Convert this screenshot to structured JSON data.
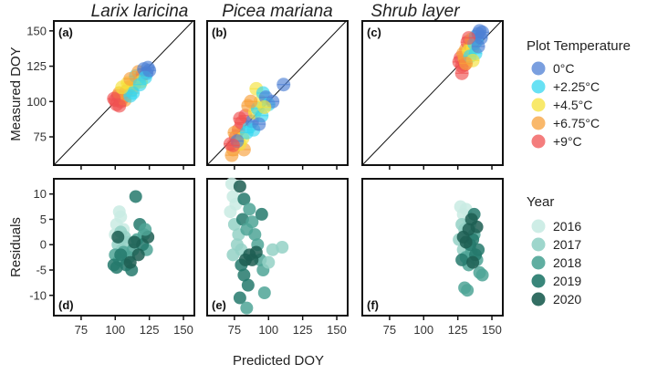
{
  "chart_data": {
    "type": "scatter",
    "x_label": "Predicted DOY",
    "y_label_top": "Measured DOY",
    "y_label_bottom": "Residuals",
    "x_ticks": [
      "75",
      "100",
      "125",
      "150"
    ],
    "x_tick_values": [
      75,
      100,
      125,
      150
    ],
    "top_y_ticks": [
      "75",
      "100",
      "125",
      "150"
    ],
    "top_y_tick_values": [
      75,
      100,
      125,
      150
    ],
    "bottom_y_ticks": [
      "10",
      "5",
      "0",
      "-5",
      "-10"
    ],
    "bottom_y_tick_values": [
      10,
      5,
      0,
      -5,
      -10
    ],
    "xlim": [
      55,
      158
    ],
    "top_ylim": [
      55,
      157
    ],
    "bottom_ylim": [
      -14,
      13
    ],
    "columns": [
      "Larix laricina",
      "Picea mariana",
      "Shrub layer"
    ],
    "panel_labels": [
      "(a)",
      "(b)",
      "(c)",
      "(d)",
      "(e)",
      "(f)"
    ],
    "temperature_legend": {
      "title": "Plot Temperature",
      "items": [
        {
          "label": "0°C",
          "color": "#4d7fd4"
        },
        {
          "label": "+2.25°C",
          "color": "#35d7f0"
        },
        {
          "label": "+4.5°C",
          "color": "#f5e23a"
        },
        {
          "label": "+6.75°C",
          "color": "#f7a03a"
        },
        {
          "label": "+9°C",
          "color": "#f05252"
        }
      ]
    },
    "year_legend": {
      "title": "Year",
      "items": [
        {
          "label": "2016",
          "color": "#c9ebe3"
        },
        {
          "label": "2017",
          "color": "#94d1c6"
        },
        {
          "label": "2018",
          "color": "#4fa597"
        },
        {
          "label": "2019",
          "color": "#24796c"
        },
        {
          "label": "2020",
          "color": "#1d5e52"
        }
      ]
    },
    "measured_vs_predicted": [
      {
        "panel": "(a)",
        "points": [
          {
            "x": 100,
            "y": 101,
            "t": 4
          },
          {
            "x": 102,
            "y": 104,
            "t": 4
          },
          {
            "x": 104,
            "y": 100,
            "t": 4
          },
          {
            "x": 101,
            "y": 98,
            "t": 4
          },
          {
            "x": 106,
            "y": 103,
            "t": 4
          },
          {
            "x": 108,
            "y": 107,
            "t": 4
          },
          {
            "x": 103,
            "y": 106,
            "t": 3
          },
          {
            "x": 107,
            "y": 101,
            "t": 3
          },
          {
            "x": 110,
            "y": 110,
            "t": 3
          },
          {
            "x": 112,
            "y": 108,
            "t": 3
          },
          {
            "x": 109,
            "y": 113,
            "t": 2
          },
          {
            "x": 114,
            "y": 112,
            "t": 2
          },
          {
            "x": 116,
            "y": 115,
            "t": 2
          },
          {
            "x": 111,
            "y": 104,
            "t": 1
          },
          {
            "x": 115,
            "y": 118,
            "t": 1
          },
          {
            "x": 118,
            "y": 117,
            "t": 1
          },
          {
            "x": 113,
            "y": 106,
            "t": 1
          },
          {
            "x": 120,
            "y": 119,
            "t": 4
          },
          {
            "x": 117,
            "y": 121,
            "t": 3
          },
          {
            "x": 119,
            "y": 114,
            "t": 2
          },
          {
            "x": 121,
            "y": 123,
            "t": 0
          },
          {
            "x": 123,
            "y": 120,
            "t": 0
          },
          {
            "x": 124,
            "y": 124,
            "t": 0
          },
          {
            "x": 122,
            "y": 117,
            "t": 1
          },
          {
            "x": 105,
            "y": 110,
            "t": 2
          },
          {
            "x": 99,
            "y": 102,
            "t": 4
          },
          {
            "x": 111,
            "y": 116,
            "t": 3
          },
          {
            "x": 118,
            "y": 112,
            "t": 1
          },
          {
            "x": 125,
            "y": 122,
            "t": 0
          },
          {
            "x": 103,
            "y": 97,
            "t": 4
          }
        ]
      },
      {
        "panel": "(b)",
        "points": [
          {
            "x": 73,
            "y": 62,
            "t": 3
          },
          {
            "x": 74,
            "y": 66,
            "t": 3
          },
          {
            "x": 72,
            "y": 70,
            "t": 4
          },
          {
            "x": 76,
            "y": 75,
            "t": 4
          },
          {
            "x": 78,
            "y": 80,
            "t": 4
          },
          {
            "x": 75,
            "y": 78,
            "t": 3
          },
          {
            "x": 80,
            "y": 85,
            "t": 4
          },
          {
            "x": 82,
            "y": 66,
            "t": 3
          },
          {
            "x": 79,
            "y": 70,
            "t": 2
          },
          {
            "x": 81,
            "y": 74,
            "t": 2
          },
          {
            "x": 84,
            "y": 78,
            "t": 1
          },
          {
            "x": 86,
            "y": 82,
            "t": 1
          },
          {
            "x": 83,
            "y": 90,
            "t": 4
          },
          {
            "x": 85,
            "y": 97,
            "t": 3
          },
          {
            "x": 88,
            "y": 86,
            "t": 0
          },
          {
            "x": 90,
            "y": 92,
            "t": 2
          },
          {
            "x": 92,
            "y": 95,
            "t": 1
          },
          {
            "x": 94,
            "y": 100,
            "t": 2
          },
          {
            "x": 91,
            "y": 109,
            "t": 2
          },
          {
            "x": 96,
            "y": 106,
            "t": 1
          },
          {
            "x": 98,
            "y": 103,
            "t": 0
          },
          {
            "x": 100,
            "y": 98,
            "t": 1
          },
          {
            "x": 103,
            "y": 100,
            "t": 0
          },
          {
            "x": 111,
            "y": 112,
            "t": 0
          },
          {
            "x": 77,
            "y": 72,
            "t": 0
          },
          {
            "x": 89,
            "y": 80,
            "t": 1
          },
          {
            "x": 95,
            "y": 90,
            "t": 1
          },
          {
            "x": 87,
            "y": 100,
            "t": 3
          },
          {
            "x": 79,
            "y": 88,
            "t": 4
          },
          {
            "x": 93,
            "y": 84,
            "t": 0
          },
          {
            "x": 97,
            "y": 96,
            "t": 2
          },
          {
            "x": 74,
            "y": 69,
            "t": 4
          }
        ]
      },
      {
        "panel": "(c)",
        "points": [
          {
            "x": 126,
            "y": 128,
            "t": 4
          },
          {
            "x": 128,
            "y": 125,
            "t": 4
          },
          {
            "x": 127,
            "y": 131,
            "t": 4
          },
          {
            "x": 129,
            "y": 134,
            "t": 3
          },
          {
            "x": 130,
            "y": 130,
            "t": 3
          },
          {
            "x": 131,
            "y": 137,
            "t": 3
          },
          {
            "x": 132,
            "y": 142,
            "t": 4
          },
          {
            "x": 134,
            "y": 140,
            "t": 3
          },
          {
            "x": 133,
            "y": 136,
            "t": 2
          },
          {
            "x": 135,
            "y": 144,
            "t": 2
          },
          {
            "x": 136,
            "y": 138,
            "t": 2
          },
          {
            "x": 137,
            "y": 141,
            "t": 1
          },
          {
            "x": 138,
            "y": 146,
            "t": 1
          },
          {
            "x": 139,
            "y": 143,
            "t": 1
          },
          {
            "x": 140,
            "y": 148,
            "t": 0
          },
          {
            "x": 141,
            "y": 150,
            "t": 0
          },
          {
            "x": 142,
            "y": 145,
            "t": 0
          },
          {
            "x": 143,
            "y": 149,
            "t": 0
          },
          {
            "x": 130,
            "y": 126,
            "t": 4
          },
          {
            "x": 134,
            "y": 132,
            "t": 1
          },
          {
            "x": 138,
            "y": 134,
            "t": 1
          },
          {
            "x": 136,
            "y": 129,
            "t": 2
          },
          {
            "x": 128,
            "y": 120,
            "t": 4
          },
          {
            "x": 133,
            "y": 145,
            "t": 4
          },
          {
            "x": 140,
            "y": 139,
            "t": 0
          },
          {
            "x": 131,
            "y": 127,
            "t": 3
          }
        ]
      }
    ],
    "residuals": [
      {
        "panel": "(d)",
        "points": [
          {
            "x": 100,
            "y": 2,
            "yr": 0
          },
          {
            "x": 101,
            "y": 4,
            "yr": 0
          },
          {
            "x": 103,
            "y": 6.5,
            "yr": 0
          },
          {
            "x": 104,
            "y": 5.5,
            "yr": 0
          },
          {
            "x": 106,
            "y": 3,
            "yr": 0
          },
          {
            "x": 102,
            "y": 0,
            "yr": 1
          },
          {
            "x": 104,
            "y": 2.5,
            "yr": 1
          },
          {
            "x": 107,
            "y": 1.5,
            "yr": 1
          },
          {
            "x": 109,
            "y": 0.5,
            "yr": 1
          },
          {
            "x": 105,
            "y": -1,
            "yr": 1
          },
          {
            "x": 100,
            "y": -2,
            "yr": 2
          },
          {
            "x": 103,
            "y": -3,
            "yr": 2
          },
          {
            "x": 106,
            "y": -1.5,
            "yr": 2
          },
          {
            "x": 110,
            "y": -2.5,
            "yr": 2
          },
          {
            "x": 113,
            "y": -1,
            "yr": 2
          },
          {
            "x": 116,
            "y": 1,
            "yr": 2
          },
          {
            "x": 121,
            "y": 2,
            "yr": 2
          },
          {
            "x": 123,
            "y": -1,
            "yr": 2
          },
          {
            "x": 101,
            "y": -4.5,
            "yr": 3
          },
          {
            "x": 104,
            "y": -2,
            "yr": 3
          },
          {
            "x": 108,
            "y": -4,
            "yr": 3
          },
          {
            "x": 112,
            "y": -5,
            "yr": 3
          },
          {
            "x": 115,
            "y": 9.5,
            "yr": 3
          },
          {
            "x": 118,
            "y": 4,
            "yr": 3
          },
          {
            "x": 120,
            "y": 0,
            "yr": 3
          },
          {
            "x": 102,
            "y": 1.5,
            "yr": 4
          },
          {
            "x": 111,
            "y": -3.5,
            "yr": 4
          },
          {
            "x": 114,
            "y": 0.5,
            "yr": 4
          },
          {
            "x": 117,
            "y": -2,
            "yr": 4
          },
          {
            "x": 124,
            "y": 1.5,
            "yr": 4
          },
          {
            "x": 122,
            "y": 3,
            "yr": 2
          },
          {
            "x": 99,
            "y": -4,
            "yr": 3
          }
        ]
      },
      {
        "panel": "(e)",
        "points": [
          {
            "x": 73,
            "y": 12,
            "yr": 0
          },
          {
            "x": 74,
            "y": 9.5,
            "yr": 0
          },
          {
            "x": 76,
            "y": 8,
            "yr": 0
          },
          {
            "x": 72,
            "y": 6.5,
            "yr": 0
          },
          {
            "x": 75,
            "y": 4,
            "yr": 1
          },
          {
            "x": 78,
            "y": 2,
            "yr": 1
          },
          {
            "x": 77,
            "y": 0,
            "yr": 1
          },
          {
            "x": 80,
            "y": -1,
            "yr": 1
          },
          {
            "x": 74,
            "y": -2,
            "yr": 1
          },
          {
            "x": 79,
            "y": 11.5,
            "yr": 4
          },
          {
            "x": 82,
            "y": 9,
            "yr": 3
          },
          {
            "x": 81,
            "y": 5,
            "yr": 3
          },
          {
            "x": 84,
            "y": 3,
            "yr": 2
          },
          {
            "x": 86,
            "y": 7,
            "yr": 2
          },
          {
            "x": 88,
            "y": 4.5,
            "yr": 2
          },
          {
            "x": 90,
            "y": 2,
            "yr": 2
          },
          {
            "x": 92,
            "y": 0,
            "yr": 2
          },
          {
            "x": 94,
            "y": -3,
            "yr": 2
          },
          {
            "x": 96,
            "y": -5,
            "yr": 2
          },
          {
            "x": 80,
            "y": -4,
            "yr": 3
          },
          {
            "x": 82,
            "y": -6,
            "yr": 3
          },
          {
            "x": 79,
            "y": -10.5,
            "yr": 3
          },
          {
            "x": 84,
            "y": -12.5,
            "yr": 2
          },
          {
            "x": 85,
            "y": -8,
            "yr": 3
          },
          {
            "x": 88,
            "y": -3,
            "yr": 4
          },
          {
            "x": 91,
            "y": -1.5,
            "yr": 4
          },
          {
            "x": 95,
            "y": 6,
            "yr": 3
          },
          {
            "x": 97,
            "y": -9.5,
            "yr": 2
          },
          {
            "x": 100,
            "y": -3.5,
            "yr": 1
          },
          {
            "x": 103,
            "y": -1,
            "yr": 1
          },
          {
            "x": 110,
            "y": -0.5,
            "yr": 1
          },
          {
            "x": 86,
            "y": -2,
            "yr": 4
          },
          {
            "x": 83,
            "y": -3,
            "yr": 4
          }
        ]
      },
      {
        "panel": "(f)",
        "points": [
          {
            "x": 127,
            "y": 7.5,
            "yr": 0
          },
          {
            "x": 129,
            "y": 6,
            "yr": 0
          },
          {
            "x": 131,
            "y": 7,
            "yr": 0
          },
          {
            "x": 133,
            "y": 5,
            "yr": 0
          },
          {
            "x": 128,
            "y": 4,
            "yr": 1
          },
          {
            "x": 130,
            "y": 3,
            "yr": 1
          },
          {
            "x": 126,
            "y": 1,
            "yr": 1
          },
          {
            "x": 132,
            "y": 2.5,
            "yr": 1
          },
          {
            "x": 134,
            "y": 4,
            "yr": 1
          },
          {
            "x": 129,
            "y": -1,
            "yr": 1
          },
          {
            "x": 131,
            "y": -2.5,
            "yr": 2
          },
          {
            "x": 133,
            "y": -4,
            "yr": 2
          },
          {
            "x": 135,
            "y": -1.5,
            "yr": 2
          },
          {
            "x": 137,
            "y": 2,
            "yr": 2
          },
          {
            "x": 139,
            "y": -3,
            "yr": 2
          },
          {
            "x": 141,
            "y": -5.5,
            "yr": 2
          },
          {
            "x": 143,
            "y": -6,
            "yr": 2
          },
          {
            "x": 130,
            "y": -8.5,
            "yr": 2
          },
          {
            "x": 132,
            "y": -9,
            "yr": 2
          },
          {
            "x": 134,
            "y": 0,
            "yr": 3
          },
          {
            "x": 136,
            "y": 1,
            "yr": 3
          },
          {
            "x": 137,
            "y": 6,
            "yr": 3
          },
          {
            "x": 138,
            "y": -2,
            "yr": 3
          },
          {
            "x": 140,
            "y": -1,
            "yr": 3
          },
          {
            "x": 128,
            "y": -3,
            "yr": 3
          },
          {
            "x": 131,
            "y": 0.5,
            "yr": 4
          },
          {
            "x": 133,
            "y": 3,
            "yr": 4
          },
          {
            "x": 135,
            "y": 5,
            "yr": 4
          },
          {
            "x": 139,
            "y": 3.5,
            "yr": 4
          },
          {
            "x": 136,
            "y": -3.5,
            "yr": 4
          },
          {
            "x": 129,
            "y": 1.5,
            "yr": 4
          }
        ]
      }
    ]
  }
}
